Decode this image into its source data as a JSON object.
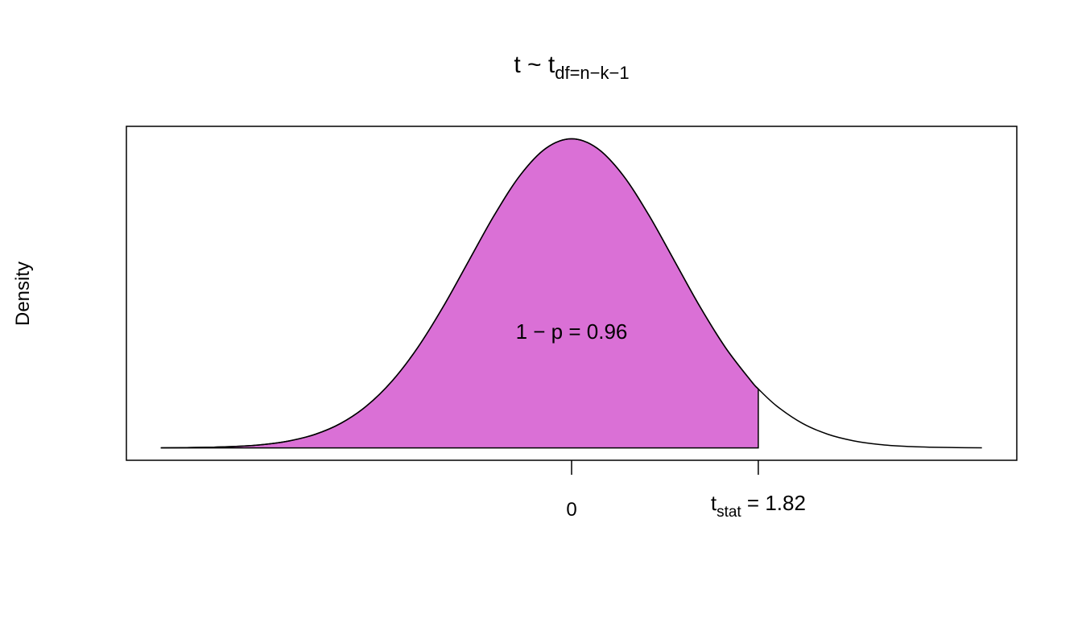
{
  "chart_data": {
    "type": "density",
    "title": {
      "main": "t ~ t",
      "sub": "df=n−k−1"
    },
    "y_label": "Density",
    "annotation": "1 − p = 0.96",
    "x": [
      -4,
      -3.75,
      -3.5,
      -3.25,
      -3,
      -2.75,
      -2.5,
      -2.25,
      -2,
      -1.75,
      -1.5,
      -1.25,
      -1,
      -0.75,
      -0.5,
      -0.25,
      0,
      0.25,
      0.5,
      0.75,
      1,
      1.25,
      1.5,
      1.75,
      1.82,
      2,
      2.25,
      2.5,
      2.75,
      3,
      3.25,
      3.5,
      3.75,
      4
    ],
    "values": [
      0.0001,
      0.0004,
      0.0009,
      0.002,
      0.0044,
      0.0091,
      0.0175,
      0.0317,
      0.054,
      0.0863,
      0.1295,
      0.1826,
      0.242,
      0.3011,
      0.3521,
      0.3867,
      0.3989,
      0.3867,
      0.3521,
      0.3011,
      0.242,
      0.1826,
      0.1295,
      0.0863,
      0.0761,
      0.054,
      0.0317,
      0.0175,
      0.0091,
      0.0044,
      0.002,
      0.0009,
      0.0004,
      0.0001
    ],
    "shade_color": "#da70d6",
    "line_color": "#000000",
    "xlim": [
      -4.34,
      4.34
    ],
    "ylim": [
      -0.016,
      0.415
    ],
    "xticks": [
      0,
      {
        "value": 1.82,
        "label": {
          "base": "t",
          "sub": "stat",
          "rest": " = 1.82"
        }
      }
    ]
  }
}
